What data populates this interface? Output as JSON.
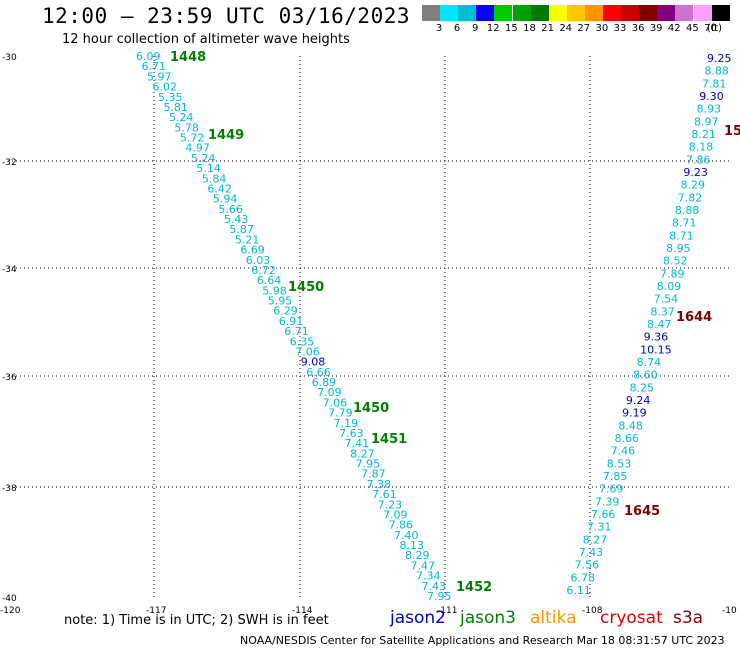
{
  "header": {
    "title": "12:00 – 23:59 UTC 03/16/2023",
    "subtitle": "12 hour collection of altimeter wave heights"
  },
  "legend": {
    "unit": "(ft)",
    "bins": [
      {
        "label": "3",
        "color": "#808080"
      },
      {
        "label": "6",
        "color": "#00e5ff"
      },
      {
        "label": "9",
        "color": "#00bcd4"
      },
      {
        "label": "12",
        "color": "#0000ff"
      },
      {
        "label": "15",
        "color": "#00c800"
      },
      {
        "label": "18",
        "color": "#00a000"
      },
      {
        "label": "21",
        "color": "#007800"
      },
      {
        "label": "24",
        "color": "#ffff00"
      },
      {
        "label": "27",
        "color": "#ffc800"
      },
      {
        "label": "30",
        "color": "#ff9600"
      },
      {
        "label": "33",
        "color": "#ff0000"
      },
      {
        "label": "36",
        "color": "#c80000"
      },
      {
        "label": "39",
        "color": "#800000"
      },
      {
        "label": "42",
        "color": "#800080"
      },
      {
        "label": "45",
        "color": "#d070d0"
      },
      {
        "label": "70",
        "color": "#ffa0ff"
      },
      {
        "label": "",
        "color": "#000000"
      }
    ]
  },
  "map": {
    "lat_ticks": [
      "-30",
      "-32",
      "-34",
      "-36",
      "-38",
      "-40"
    ],
    "lon_ticks": [
      "-120",
      "-117",
      "-114",
      "-111",
      "-108",
      "-10"
    ],
    "colors": {
      "cyan": "#00b8d8",
      "blue": "#0000c0",
      "green": "#008000",
      "darkred": "#800000"
    },
    "track1": [
      "6.09",
      "6.71",
      "5.97",
      "6.02",
      "5.35",
      "5.81",
      "5.24",
      "5.78",
      "5.72",
      "4.97",
      "5.24",
      "5.14",
      "5.84",
      "6.42",
      "5.94",
      "5.66",
      "5.43",
      "5.87",
      "5.21",
      "6.69",
      "6.03",
      "6.72",
      "6.64",
      "5.98",
      "5.95",
      "6.29",
      "6.91",
      "6.71",
      "6.35",
      "7.06",
      "9.08",
      "6.66",
      "6.89",
      "7.09",
      "7.06",
      "7.79",
      "7.19",
      "7.63",
      "7.41",
      "8.27",
      "7.95",
      "7.87",
      "7.38",
      "7.61",
      "7.23",
      "7.09",
      "7.86",
      "7.40",
      "8.13",
      "8.29",
      "7.47",
      "7.34",
      "7.43",
      "7.95"
    ],
    "track1_blue": [
      "9.08"
    ],
    "track2": [
      "9.25",
      "8.88",
      "7.81",
      "9.30",
      "8.93",
      "8.97",
      "8.21",
      "8.18",
      "7.86",
      "9.23",
      "8.29",
      "7.82",
      "8.88",
      "8.71",
      "8.71",
      "8.95",
      "8.52",
      "7.89",
      "8.09",
      "7.54",
      "8.37",
      "8.47",
      "9.36",
      "10.15",
      "8.74",
      "8.60",
      "8.25",
      "9.24",
      "9.19",
      "8.48",
      "8.66",
      "7.46",
      "8.53",
      "7.85",
      "7.69",
      "7.39",
      "7.66",
      "7.31",
      "8.27",
      "7.43",
      "7.56",
      "6.78",
      "6.11"
    ],
    "track2_blue": [
      "9.25",
      "9.30",
      "9.23",
      "9.36",
      "10.15",
      "9.24",
      "9.19"
    ],
    "time_labels": [
      {
        "text": "1448",
        "color": "green"
      },
      {
        "text": "1449",
        "color": "green"
      },
      {
        "text": "1450",
        "color": "green"
      },
      {
        "text": "1450",
        "color": "green"
      },
      {
        "text": "1451",
        "color": "green"
      },
      {
        "text": "1452",
        "color": "green"
      },
      {
        "text": "15",
        "color": "darkred"
      },
      {
        "text": "1644",
        "color": "darkred"
      },
      {
        "text": "1645",
        "color": "darkred"
      }
    ]
  },
  "note": "note:  1) Time is in UTC; 2) SWH is in feet",
  "satellites": [
    {
      "name": "jason2",
      "color": "#0000c8"
    },
    {
      "name": "jason3",
      "color": "#008000"
    },
    {
      "name": "altika",
      "color": "#ff9600"
    },
    {
      "name": "cryosat",
      "color": "#e00000"
    },
    {
      "name": "s3a",
      "color": "#800000"
    }
  ],
  "footer": "NOAA/NESDIS Center for Satellite Applications and Research   Mar 18 08:31:57 UTC 2023"
}
